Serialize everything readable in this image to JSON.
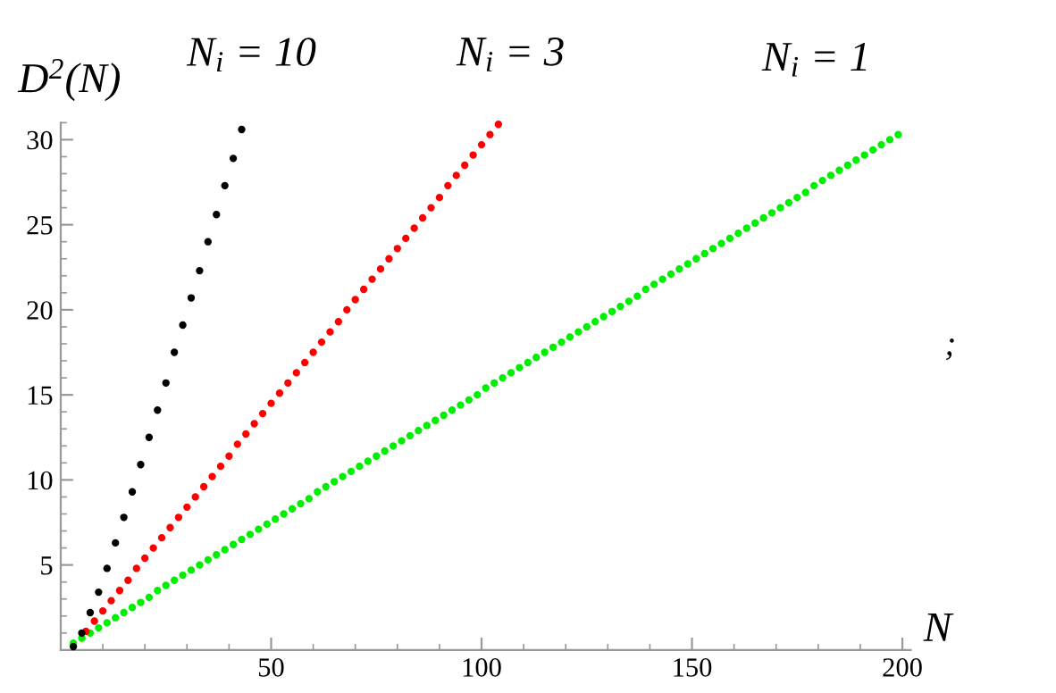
{
  "chart_data": {
    "type": "scatter",
    "xlabel": "N",
    "ylabel": "D$^{2}$(N)",
    "annotations": [
      ";"
    ],
    "xlim": [
      0,
      202
    ],
    "ylim": [
      0,
      31
    ],
    "xticks": [
      50,
      100,
      150,
      200
    ],
    "yticks": [
      5,
      10,
      15,
      20,
      25,
      30
    ],
    "marker": "circle",
    "grid": false,
    "legend": false,
    "series": [
      {
        "name": "N$_{i}$ = 10",
        "color": "#000000",
        "x": [
          3,
          5,
          7,
          9,
          11,
          13,
          15,
          17,
          19,
          21,
          23,
          25,
          27,
          29,
          31,
          33,
          35,
          37,
          39,
          41,
          43
        ],
        "values": [
          0.2,
          1.0,
          2.2,
          3.4,
          4.8,
          6.3,
          7.8,
          9.3,
          10.9,
          12.5,
          14.1,
          15.7,
          17.5,
          19.1,
          20.7,
          22.3,
          24.0,
          25.6,
          27.3,
          28.9,
          30.6
        ]
      },
      {
        "name": "N$_{i}$ = 3",
        "color": "#ff0000",
        "x": [
          6,
          8,
          10,
          12,
          14,
          16,
          18,
          20,
          22,
          24,
          26,
          28,
          30,
          32,
          34,
          36,
          38,
          40,
          42,
          44,
          46,
          48,
          50,
          52,
          54,
          56,
          58,
          60,
          62,
          64,
          66,
          68,
          70,
          72,
          74,
          76,
          78,
          80,
          82,
          84,
          86,
          88,
          90,
          92,
          94,
          96,
          98,
          100,
          102,
          104
        ],
        "values": [
          1.1,
          1.7,
          2.3,
          2.9,
          3.5,
          4.1,
          4.8,
          5.4,
          6.0,
          6.6,
          7.2,
          7.8,
          8.4,
          9.0,
          9.6,
          10.2,
          10.8,
          11.4,
          12.1,
          12.7,
          13.3,
          13.9,
          14.5,
          15.1,
          15.7,
          16.3,
          16.9,
          17.5,
          18.1,
          18.7,
          19.3,
          20.0,
          20.6,
          21.2,
          21.8,
          22.4,
          23.0,
          23.6,
          24.2,
          24.8,
          25.4,
          26.0,
          26.6,
          27.3,
          27.9,
          28.5,
          29.1,
          29.7,
          30.3,
          30.9
        ]
      },
      {
        "name": "N$_{i}$ = 1",
        "color": "#00ee00",
        "x": [
          3,
          5,
          7,
          9,
          11,
          13,
          15,
          17,
          19,
          21,
          23,
          25,
          27,
          29,
          31,
          33,
          35,
          37,
          39,
          41,
          43,
          45,
          47,
          49,
          51,
          53,
          55,
          57,
          59,
          61,
          63,
          65,
          67,
          69,
          71,
          73,
          75,
          77,
          79,
          81,
          83,
          85,
          87,
          89,
          91,
          93,
          95,
          97,
          99,
          101,
          103,
          105,
          107,
          109,
          111,
          113,
          115,
          117,
          119,
          121,
          123,
          125,
          127,
          129,
          131,
          133,
          135,
          137,
          139,
          141,
          143,
          145,
          147,
          149,
          151,
          153,
          155,
          157,
          159,
          161,
          163,
          165,
          167,
          169,
          171,
          173,
          175,
          177,
          179,
          181,
          183,
          185,
          187,
          189,
          191,
          193,
          195,
          197,
          199
        ],
        "values": [
          0.4,
          0.7,
          1.0,
          1.3,
          1.6,
          1.9,
          2.2,
          2.5,
          2.8,
          3.1,
          3.5,
          3.8,
          4.1,
          4.4,
          4.7,
          5.0,
          5.3,
          5.6,
          5.9,
          6.2,
          6.5,
          6.8,
          7.1,
          7.4,
          7.7,
          8.0,
          8.3,
          8.6,
          8.9,
          9.3,
          9.6,
          9.9,
          10.2,
          10.5,
          10.8,
          11.1,
          11.4,
          11.7,
          12.0,
          12.3,
          12.6,
          12.9,
          13.2,
          13.5,
          13.8,
          14.1,
          14.4,
          14.7,
          15.0,
          15.4,
          15.7,
          16.0,
          16.3,
          16.6,
          16.9,
          17.2,
          17.5,
          17.8,
          18.1,
          18.4,
          18.7,
          19.0,
          19.3,
          19.6,
          19.9,
          20.2,
          20.5,
          20.8,
          21.2,
          21.5,
          21.8,
          22.1,
          22.4,
          22.7,
          23.0,
          23.3,
          23.6,
          23.9,
          24.2,
          24.5,
          24.8,
          25.1,
          25.4,
          25.7,
          26.0,
          26.3,
          26.6,
          26.9,
          27.3,
          27.6,
          27.9,
          28.2,
          28.5,
          28.8,
          29.1,
          29.4,
          29.7,
          30.0,
          30.3
        ]
      }
    ]
  }
}
